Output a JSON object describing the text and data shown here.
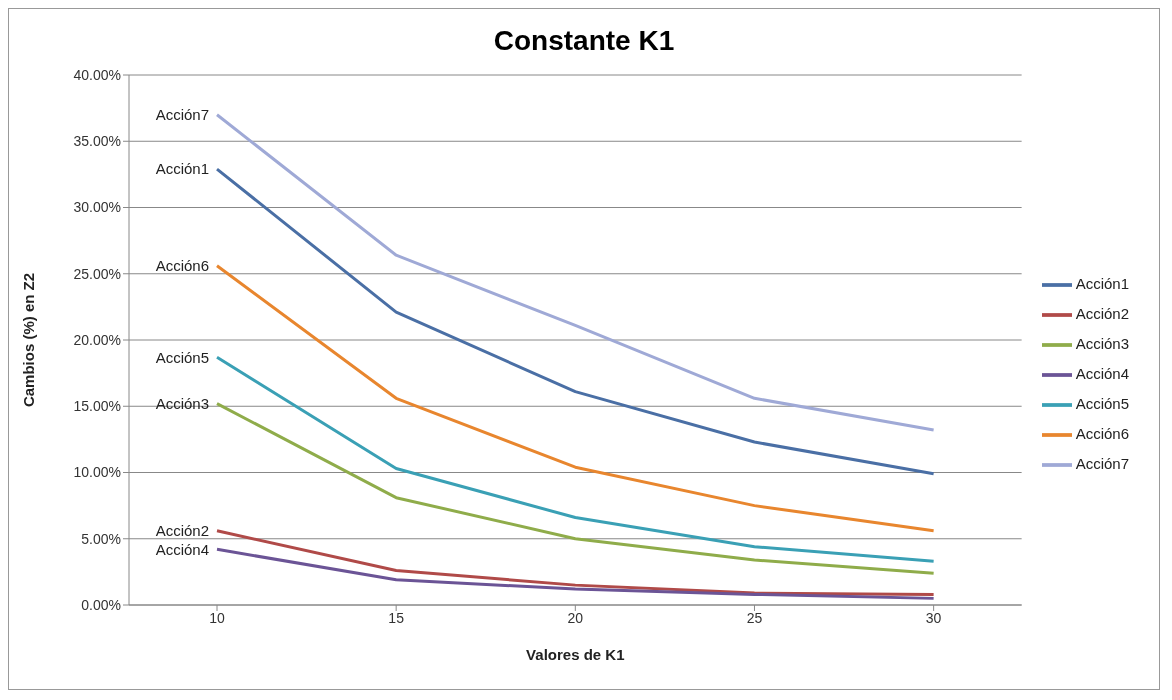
{
  "chart_data": {
    "type": "line",
    "title": "Constante K1",
    "xlabel": "Valores de K1",
    "ylabel": "Cambios (%) en Z2",
    "categories": [
      "10",
      "15",
      "20",
      "25",
      "30"
    ],
    "series": [
      {
        "name": "Acción1",
        "color": "#4a6fa5",
        "values": [
          32.9,
          22.1,
          16.1,
          12.3,
          9.9
        ]
      },
      {
        "name": "Acción2",
        "color": "#b04a48",
        "values": [
          5.6,
          2.6,
          1.5,
          0.9,
          0.8
        ]
      },
      {
        "name": "Acción3",
        "color": "#8fac4a",
        "values": [
          15.2,
          8.1,
          5.0,
          3.4,
          2.4
        ]
      },
      {
        "name": "Acción4",
        "color": "#6b5496",
        "values": [
          4.2,
          1.9,
          1.2,
          0.8,
          0.5
        ]
      },
      {
        "name": "Acción5",
        "color": "#3aa0b5",
        "values": [
          18.7,
          10.3,
          6.6,
          4.4,
          3.3
        ]
      },
      {
        "name": "Acción6",
        "color": "#e8862e",
        "values": [
          25.6,
          15.6,
          10.4,
          7.5,
          5.6
        ]
      },
      {
        "name": "Acción7",
        "color": "#9fa9d6",
        "values": [
          37.0,
          26.4,
          21.1,
          15.6,
          13.2
        ]
      }
    ],
    "ylim": [
      0,
      40
    ],
    "yticks": [
      {
        "value": 0,
        "label": "0.00%"
      },
      {
        "value": 5,
        "label": "5.00%"
      },
      {
        "value": 10,
        "label": "10.00%"
      },
      {
        "value": 15,
        "label": "15.00%"
      },
      {
        "value": 20,
        "label": "20.00%"
      },
      {
        "value": 25,
        "label": "25.00%"
      },
      {
        "value": 30,
        "label": "30.00%"
      },
      {
        "value": 35,
        "label": "35.00%"
      },
      {
        "value": 40,
        "label": "40.00%"
      }
    ],
    "annotations": [
      {
        "text": "Acción7",
        "x": "10",
        "y": 37.0
      },
      {
        "text": "Acción1",
        "x": "10",
        "y": 32.9
      },
      {
        "text": "Acción6",
        "x": "10",
        "y": 25.6
      },
      {
        "text": "Acción5",
        "x": "10",
        "y": 18.7
      },
      {
        "text": "Acción3",
        "x": "10",
        "y": 15.2
      },
      {
        "text": "Acción2",
        "x": "10",
        "y": 5.6
      },
      {
        "text": "Acción4",
        "x": "10",
        "y": 4.2
      }
    ],
    "grid": "y",
    "legend": "right",
    "marker": "none",
    "line_style": "solid"
  }
}
